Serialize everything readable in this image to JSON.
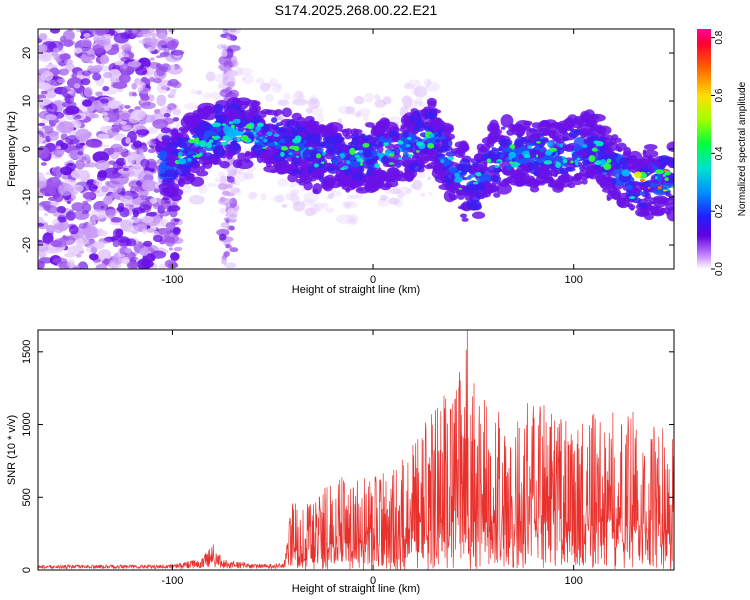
{
  "title": "S174.2025.268.00.22.E21",
  "chart_data": [
    {
      "type": "heatmap",
      "xlabel": "Height of straight line (km)",
      "ylabel": "Frequency (Hz)",
      "xlim": [
        -167,
        150
      ],
      "ylim": [
        -25,
        25
      ],
      "xticks": [
        -100,
        0,
        100
      ],
      "yticks": [
        -20,
        -10,
        0,
        10,
        20
      ],
      "colorbar": {
        "label": "Normalized spectral amplitude",
        "range": [
          0.0,
          0.83
        ],
        "ticks": [
          "0.0",
          "0.2",
          "0.4",
          "0.6",
          "0.8"
        ]
      },
      "ridge": {
        "description_points_x": [
          -100,
          -80,
          -70,
          -50,
          -30,
          -10,
          10,
          30,
          40,
          50,
          60,
          80,
          100,
          110,
          120,
          130,
          140,
          150
        ],
        "description_points_y": [
          -3,
          3,
          4,
          2,
          -1,
          -2,
          -1,
          3,
          -5,
          -8,
          -2,
          -1,
          -1,
          0,
          -4,
          -8,
          -7,
          -7
        ]
      }
    },
    {
      "type": "line",
      "xlabel": "Height of straight line (km)",
      "ylabel": "SNR (10 * v/v)",
      "xlim": [
        -167,
        150
      ],
      "ylim": [
        0,
        1650
      ],
      "xticks": [
        -100,
        0,
        100
      ],
      "yticks": [
        0,
        500,
        1000,
        1500
      ],
      "series": [
        {
          "name": "SNR",
          "color": "#e8302c",
          "envelope_x": [
            -167,
            -100,
            -85,
            -80,
            -75,
            -60,
            -45,
            -40,
            -30,
            -20,
            -10,
            0,
            10,
            20,
            30,
            40,
            48,
            50,
            60,
            70,
            80,
            90,
            100,
            110,
            120,
            130,
            140,
            150
          ],
          "envelope_y": [
            30,
            35,
            90,
            230,
            80,
            40,
            40,
            500,
            450,
            650,
            650,
            650,
            700,
            900,
            1100,
            1300,
            1650,
            1300,
            1100,
            1100,
            1200,
            1100,
            1000,
            1100,
            1100,
            1100,
            1000,
            1050
          ]
        }
      ]
    }
  ]
}
